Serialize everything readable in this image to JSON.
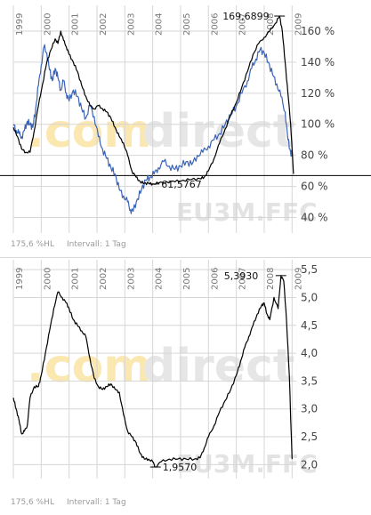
{
  "watermark": {
    "brand_a": ".com",
    "brand_b": "direct",
    "symbol": "EU3M.FFC"
  },
  "footer": {
    "scale": "175,6 %HL",
    "interval": "Intervall: 1 Tag"
  },
  "colors": {
    "main_line": "#000000",
    "compare_line": "#3a63b8",
    "grid": "#d6d6d6"
  },
  "chart_data": [
    {
      "type": "line",
      "title": "",
      "years": [
        "1999",
        "2000",
        "2001",
        "2002",
        "2003",
        "2004",
        "2005",
        "2006",
        "2007",
        "2008",
        "2009"
      ],
      "ylim": [
        30,
        172
      ],
      "y_ticks": [
        40,
        60,
        80,
        100,
        120,
        140,
        160
      ],
      "y_tick_labels": [
        "40 %",
        "60 %",
        "80 %",
        "100 %",
        "120 %",
        "140 %",
        "160 %"
      ],
      "grid": true,
      "reference_line": 67,
      "annotations": [
        {
          "label": "169,6899",
          "x": 2008.55,
          "y": 169.69
        },
        {
          "label": "61,5767",
          "x": 2004.05,
          "y": 61.58
        }
      ],
      "series": [
        {
          "name": "",
          "x": [
            1999.0,
            1999.15,
            1999.3,
            1999.45,
            1999.6,
            1999.75,
            1999.9,
            2000.05,
            2000.2,
            2000.35,
            2000.5,
            2000.6,
            2000.7,
            2000.8,
            2000.9,
            2001.0,
            2001.15,
            2001.3,
            2001.45,
            2001.6,
            2001.75,
            2001.9,
            2002.05,
            2002.2,
            2002.35,
            2002.5,
            2002.65,
            2002.8,
            2002.95,
            2003.1,
            2003.25,
            2003.4,
            2003.55,
            2003.7,
            2003.85,
            2004.0,
            2004.2,
            2004.5,
            2004.8,
            2005.1,
            2005.4,
            2005.7,
            2005.85,
            2006.0,
            2006.2,
            2006.4,
            2006.6,
            2006.8,
            2007.0,
            2007.2,
            2007.4,
            2007.6,
            2007.8,
            2008.0,
            2008.2,
            2008.4,
            2008.55,
            2008.65,
            2008.75,
            2008.85,
            2008.95,
            2009.0,
            2009.05
          ],
          "y": [
            98,
            92,
            84,
            82,
            82,
            96,
            112,
            126,
            140,
            148,
            155,
            152,
            160,
            154,
            150,
            145,
            140,
            134,
            125,
            118,
            112,
            110,
            112,
            110,
            108,
            104,
            98,
            92,
            88,
            80,
            70,
            66,
            63,
            62,
            62,
            61.6,
            62,
            63,
            63,
            64,
            64.5,
            65,
            66,
            70,
            78,
            88,
            97,
            106,
            114,
            124,
            134,
            145,
            152,
            156,
            160,
            165,
            169.69,
            160,
            140,
            120,
            100,
            84,
            68
          ]
        },
        {
          "name": "",
          "x": [
            1999.0,
            1999.1,
            1999.2,
            1999.3,
            1999.4,
            1999.5,
            1999.6,
            1999.7,
            1999.8,
            1999.9,
            2000.0,
            2000.1,
            2000.2,
            2000.3,
            2000.4,
            2000.5,
            2000.6,
            2000.7,
            2000.8,
            2000.9,
            2001.0,
            2001.15,
            2001.3,
            2001.45,
            2001.6,
            2001.75,
            2001.9,
            2002.05,
            2002.2,
            2002.35,
            2002.5,
            2002.65,
            2002.8,
            2002.95,
            2003.1,
            2003.2,
            2003.3,
            2003.45,
            2003.6,
            2003.75,
            2003.9,
            2004.05,
            2004.2,
            2004.4,
            2004.6,
            2004.8,
            2005.0,
            2005.2,
            2005.4,
            2005.6,
            2005.8,
            2006.0,
            2006.2,
            2006.4,
            2006.6,
            2006.8,
            2007.0,
            2007.2,
            2007.4,
            2007.55,
            2007.7,
            2007.85,
            2008.0,
            2008.15,
            2008.3,
            2008.45,
            2008.6,
            2008.75,
            2008.85,
            2008.95,
            2009.0
          ],
          "y": [
            100,
            96,
            94,
            92,
            96,
            102,
            100,
            98,
            110,
            125,
            138,
            150,
            146,
            135,
            128,
            136,
            130,
            122,
            128,
            120,
            115,
            122,
            118,
            110,
            104,
            112,
            105,
            92,
            84,
            78,
            72,
            68,
            58,
            54,
            50,
            45,
            44,
            52,
            58,
            64,
            66,
            68,
            72,
            76,
            73,
            71,
            73,
            76,
            74,
            80,
            82,
            86,
            90,
            94,
            100,
            106,
            112,
            120,
            128,
            136,
            142,
            148,
            146,
            140,
            132,
            126,
            118,
            108,
            90,
            82,
            80
          ]
        }
      ]
    },
    {
      "type": "line",
      "title": "",
      "years": [
        "1999",
        "2000",
        "2001",
        "2002",
        "2003",
        "2004",
        "2005",
        "2006",
        "2007",
        "2008",
        "2009"
      ],
      "ylim": [
        1.75,
        5.55
      ],
      "y_ticks": [
        2.0,
        2.5,
        3.0,
        3.5,
        4.0,
        4.5,
        5.0,
        5.5
      ],
      "y_tick_labels": [
        "2,0",
        "2,5",
        "3,0",
        "3,5",
        "4,0",
        "4,5",
        "5,0",
        "5,5"
      ],
      "grid": true,
      "annotations": [
        {
          "label": "5,3930",
          "x": 2008.6,
          "y": 5.393
        },
        {
          "label": "1,9570",
          "x": 2004.1,
          "y": 1.957
        }
      ],
      "series": [
        {
          "name": "",
          "x": [
            1999.0,
            1999.1,
            1999.2,
            1999.3,
            1999.4,
            1999.5,
            1999.6,
            1999.75,
            1999.9,
            2000.0,
            2000.15,
            2000.3,
            2000.45,
            2000.6,
            2000.75,
            2000.9,
            2001.0,
            2001.15,
            2001.3,
            2001.45,
            2001.6,
            2001.75,
            2001.9,
            2002.05,
            2002.2,
            2002.35,
            2002.5,
            2002.65,
            2002.8,
            2002.95,
            2003.1,
            2003.25,
            2003.4,
            2003.55,
            2003.7,
            2003.85,
            2004.0,
            2004.1,
            2004.3,
            2004.6,
            2004.9,
            2005.2,
            2005.5,
            2005.7,
            2005.85,
            2006.0,
            2006.2,
            2006.4,
            2006.6,
            2006.8,
            2007.0,
            2007.15,
            2007.3,
            2007.45,
            2007.6,
            2007.75,
            2007.9,
            2008.0,
            2008.1,
            2008.2,
            2008.35,
            2008.5,
            2008.6,
            2008.7,
            2008.8,
            2008.9,
            2009.0
          ],
          "y": [
            3.2,
            3.0,
            2.8,
            2.55,
            2.6,
            2.7,
            3.2,
            3.4,
            3.4,
            3.6,
            4.0,
            4.4,
            4.8,
            5.1,
            5.0,
            4.9,
            4.8,
            4.6,
            4.5,
            4.4,
            4.3,
            3.9,
            3.55,
            3.4,
            3.35,
            3.4,
            3.45,
            3.35,
            3.3,
            2.9,
            2.6,
            2.5,
            2.4,
            2.2,
            2.1,
            2.1,
            2.05,
            1.957,
            2.05,
            2.1,
            2.1,
            2.1,
            2.1,
            2.12,
            2.3,
            2.5,
            2.7,
            2.95,
            3.15,
            3.35,
            3.6,
            3.85,
            4.1,
            4.3,
            4.5,
            4.7,
            4.85,
            4.9,
            4.7,
            4.6,
            5.0,
            4.8,
            5.393,
            5.3,
            4.6,
            3.6,
            2.1
          ]
        }
      ]
    }
  ]
}
